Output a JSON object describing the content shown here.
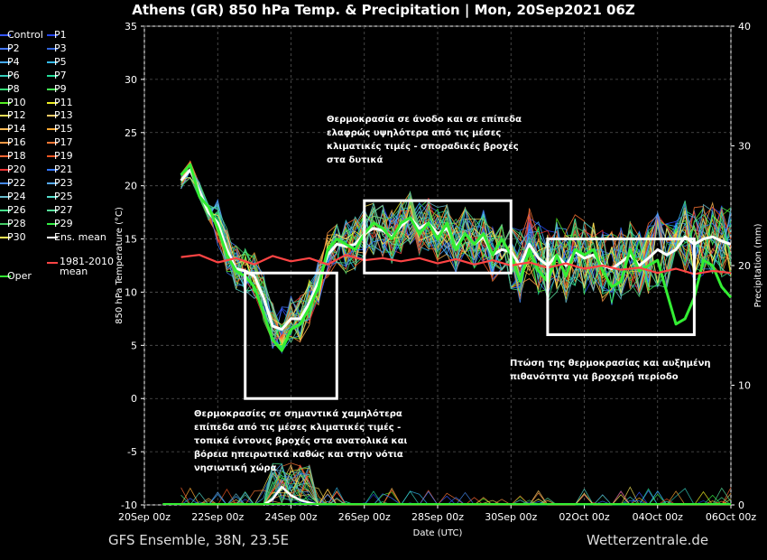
{
  "title": "Athens  (GR)  850 hPa Temp. & Precipitation | Mon, 20Sep2021 06Z",
  "footer": {
    "left": "GFS Ensemble, 38N, 23.5E",
    "right": "Wetterzentrale.de"
  },
  "legend": [
    {
      "name": "Control",
      "color": "#3355ff"
    },
    {
      "name": "P1",
      "color": "#2244ee"
    },
    {
      "name": "P2",
      "color": "#4477ff"
    },
    {
      "name": "P3",
      "color": "#3366dd"
    },
    {
      "name": "P4",
      "color": "#44aaff"
    },
    {
      "name": "P5",
      "color": "#33bbee"
    },
    {
      "name": "P6",
      "color": "#33ccbb"
    },
    {
      "name": "P7",
      "color": "#22dd99"
    },
    {
      "name": "P8",
      "color": "#33dd77"
    },
    {
      "name": "P9",
      "color": "#44ee55"
    },
    {
      "name": "P10",
      "color": "#55ee22"
    },
    {
      "name": "P11",
      "color": "#eeee22"
    },
    {
      "name": "P12",
      "color": "#eedd55"
    },
    {
      "name": "P13",
      "color": "#ffcc66"
    },
    {
      "name": "P14",
      "color": "#ffbb55"
    },
    {
      "name": "P15",
      "color": "#ffaa33"
    },
    {
      "name": "P16",
      "color": "#ff9944"
    },
    {
      "name": "P17",
      "color": "#ff7733"
    },
    {
      "name": "P18",
      "color": "#ff6633"
    },
    {
      "name": "P19",
      "color": "#ee5522"
    },
    {
      "name": "P20",
      "color": "#ee3333"
    },
    {
      "name": "P21",
      "color": "#3377ff"
    },
    {
      "name": "P22",
      "color": "#4488ee"
    },
    {
      "name": "P23",
      "color": "#55aaff"
    },
    {
      "name": "P24",
      "color": "#66bbcc"
    },
    {
      "name": "P25",
      "color": "#55ddcc"
    },
    {
      "name": "P26",
      "color": "#44dd88"
    },
    {
      "name": "P27",
      "color": "#55dd99"
    },
    {
      "name": "P28",
      "color": "#44cc66"
    },
    {
      "name": "P29",
      "color": "#33ee44"
    },
    {
      "name": "P30",
      "color": "#ffee55"
    },
    {
      "name": "Ens. mean",
      "color": "#ffffff"
    },
    {
      "name": "Oper",
      "color": "#33ee33"
    },
    {
      "name": "1981-2010 mean",
      "color": "#ff4444"
    }
  ],
  "annotations": {
    "cold": [
      "Θερμοκρασίες σε σημαντικά χαμηλότερα",
      "επίπεδα από τις μέσες κλιματικές τιμές -",
      "τοπικά έντονες βροχές στα ανατολικά και",
      "βόρεια ηπειρωτικά καθώς και στην νότια",
      "νησιωτική χώρα"
    ],
    "warm": [
      "Θερμοκρασία σε άνοδο και σε επίπεδα",
      "ελαφρώς υψηλότερα από τις μέσες",
      "κλιματικές τιμές - σποραδικές βροχές",
      "στα δυτικά"
    ],
    "drop": [
      "Πτώση της θερμοκρασίας και αυξημένη",
      "πιθανότητα για βροχερή περίοδο"
    ]
  },
  "chart_data": {
    "type": "line",
    "title": "Athens  (GR)  850 hPa Temp. & Precipitation | Mon, 20Sep2021 06Z",
    "xlabel": "Date (UTC)",
    "ylabel": "850 hPa Temperature (°C)",
    "y2label": "Precipitation (mm)",
    "ylim": [
      -10,
      35
    ],
    "y2lim": [
      0,
      40
    ],
    "yticks": [
      -10,
      -5,
      0,
      5,
      10,
      15,
      20,
      25,
      30,
      35
    ],
    "y2ticks": [
      0,
      10,
      20,
      30,
      40
    ],
    "xlim_days": [
      0,
      16
    ],
    "xticks": [
      {
        "label": "20Sep 00z",
        "day": 0
      },
      {
        "label": "22Sep 00z",
        "day": 2
      },
      {
        "label": "24Sep 00z",
        "day": 4
      },
      {
        "label": "26Sep 00z",
        "day": 6
      },
      {
        "label": "28Sep 00z",
        "day": 8
      },
      {
        "label": "30Sep 00z",
        "day": 10
      },
      {
        "label": "02Oct 00z",
        "day": 12
      },
      {
        "label": "04Oct 00z",
        "day": 14
      },
      {
        "label": "06Oct 00z",
        "day": 16
      }
    ],
    "grid": true,
    "series": [
      {
        "name": "Ens. mean",
        "color": "#ffffff",
        "x": [
          1,
          1.25,
          1.5,
          1.75,
          2,
          2.25,
          2.5,
          2.75,
          3,
          3.25,
          3.5,
          3.75,
          4,
          4.25,
          4.5,
          4.75,
          5,
          5.25,
          5.5,
          5.75,
          6,
          6.25,
          6.5,
          6.75,
          7,
          7.25,
          7.5,
          7.75,
          8,
          8.25,
          8.5,
          8.75,
          9,
          9.25,
          9.5,
          9.75,
          10,
          10.25,
          10.5,
          10.75,
          11,
          11.25,
          11.5,
          11.75,
          12,
          12.25,
          12.5,
          12.75,
          13,
          13.25,
          13.5,
          13.75,
          14,
          14.25,
          14.5,
          14.75,
          15,
          15.25,
          15.5,
          15.75,
          16
        ],
        "y": [
          20.5,
          21.5,
          19.5,
          17.5,
          16.5,
          14,
          12.2,
          12,
          11.5,
          9.5,
          6.8,
          6.5,
          7.5,
          7.5,
          9,
          11,
          13.5,
          14.5,
          14.3,
          14.5,
          15.5,
          16,
          15.8,
          15.2,
          16.2,
          17,
          16,
          16.5,
          15.5,
          16,
          14.3,
          15.5,
          14.5,
          15.2,
          13.5,
          14,
          13.8,
          12.5,
          14.5,
          13.2,
          12.5,
          13.5,
          12.5,
          13.8,
          13.2,
          13.5,
          12.5,
          12.2,
          12.8,
          13.5,
          12.5,
          13.2,
          14,
          13.5,
          14,
          15.2,
          14.5,
          15,
          15.2,
          14.8,
          14.5
        ]
      },
      {
        "name": "Oper",
        "color": "#33ee33",
        "x": [
          1,
          1.25,
          1.5,
          1.75,
          2,
          2.25,
          2.5,
          2.75,
          3,
          3.25,
          3.5,
          3.75,
          4,
          4.25,
          4.5,
          4.75,
          5,
          5.25,
          5.5,
          5.75,
          6,
          6.25,
          6.5,
          6.75,
          7,
          7.25,
          7.5,
          7.75,
          8,
          8.25,
          8.5,
          8.75,
          9,
          9.25,
          9.5,
          9.75,
          10,
          10.25,
          10.5,
          10.75,
          11,
          11.25,
          11.5,
          11.75,
          12,
          12.25,
          12.5,
          12.75,
          13,
          13.25,
          13.5,
          13.75,
          14,
          14.25,
          14.5,
          14.75,
          15,
          15.25,
          15.5,
          15.75,
          16
        ],
        "y": [
          21,
          22,
          19,
          18,
          16,
          13.5,
          12,
          11.5,
          10.5,
          8,
          5.5,
          4.5,
          6.5,
          7,
          8.5,
          10.5,
          14,
          15,
          14.5,
          14,
          15.5,
          16.5,
          16,
          15,
          16.5,
          17,
          15.5,
          16.5,
          15,
          16.5,
          14,
          15.5,
          14.5,
          15.5,
          13.5,
          15,
          13.5,
          11,
          14,
          12,
          11,
          13.5,
          11.5,
          14,
          13.5,
          14,
          12,
          10.5,
          11,
          14,
          12,
          12.5,
          13,
          10,
          7,
          7.5,
          9.5,
          13,
          12.5,
          10.5,
          9.5
        ]
      },
      {
        "name": "1981-2010 mean",
        "color": "#ff4444",
        "x": [
          1,
          1.5,
          2,
          2.5,
          3,
          3.5,
          4,
          4.5,
          5,
          5.5,
          6,
          6.5,
          7,
          7.5,
          8,
          8.5,
          9,
          9.5,
          10,
          10.5,
          11,
          11.5,
          12,
          12.5,
          13,
          13.5,
          14,
          14.5,
          15,
          15.5,
          16
        ],
        "y": [
          13.3,
          13.5,
          12.8,
          13.2,
          12.6,
          13.4,
          12.9,
          13.2,
          12.6,
          13.5,
          13,
          13.2,
          12.9,
          13.2,
          12.7,
          13.1,
          12.6,
          13,
          12.5,
          12.8,
          12.3,
          12.7,
          12.2,
          12.5,
          12.1,
          12.3,
          11.8,
          12.2,
          11.7,
          12,
          11.8
        ]
      }
    ],
    "precipitation_ens_mean": {
      "x": [
        3.5,
        3.75,
        4,
        4.25,
        4.5
      ],
      "values": [
        0.5,
        1.5,
        0.8,
        0.4,
        0.2
      ]
    },
    "highlight_boxes": [
      {
        "x": [
          2.75,
          5.25
        ],
        "y": [
          0,
          11.8
        ]
      },
      {
        "x": [
          6,
          10
        ],
        "y": [
          11.8,
          18.6
        ]
      },
      {
        "x": [
          11,
          15
        ],
        "y": [
          6,
          15
        ]
      }
    ]
  }
}
